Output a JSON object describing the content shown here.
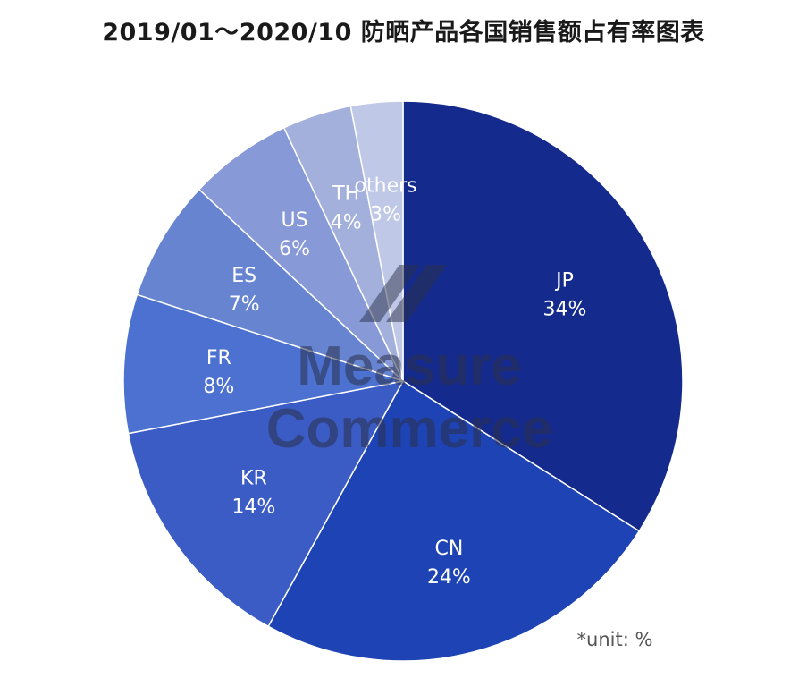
{
  "chart_data": {
    "type": "pie",
    "title": "2019/01～2020/10 防晒产品各国销售额占有率图表",
    "unit_note": "*unit: %",
    "slices": [
      {
        "label": "JP",
        "value": 34,
        "value_text": "34%",
        "color": "#142a8c",
        "text_color": "#ffffff"
      },
      {
        "label": "CN",
        "value": 24,
        "value_text": "24%",
        "color": "#1e43b4",
        "text_color": "#ffffff"
      },
      {
        "label": "KR",
        "value": 14,
        "value_text": "14%",
        "color": "#3a5cc4",
        "text_color": "#ffffff"
      },
      {
        "label": "FR",
        "value": 8,
        "value_text": "8%",
        "color": "#4c71d0",
        "text_color": "#ffffff"
      },
      {
        "label": "ES",
        "value": 7,
        "value_text": "7%",
        "color": "#6684d0",
        "text_color": "#ffffff"
      },
      {
        "label": "US",
        "value": 6,
        "value_text": "6%",
        "color": "#8799d6",
        "text_color": "#ffffff"
      },
      {
        "label": "TH",
        "value": 4,
        "value_text": "4%",
        "color": "#a3b0dc",
        "text_color": "#ffffff"
      },
      {
        "label": "others",
        "value": 3,
        "value_text": "3%",
        "color": "#bfc8e6",
        "text_color": "#ffffff"
      }
    ]
  },
  "watermark": {
    "line1": "Measure",
    "line2": "Commerce"
  }
}
